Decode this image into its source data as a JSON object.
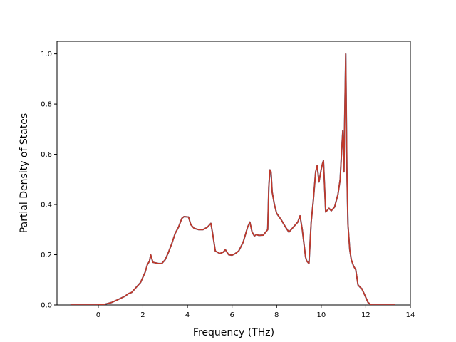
{
  "chart_data": {
    "type": "line",
    "title": "",
    "xlabel": "Frequency (THz)",
    "ylabel": "Partial Density of States",
    "xlim": [
      -1.85,
      14.0
    ],
    "ylim": [
      0.0,
      1.05
    ],
    "xticks": [
      0,
      2,
      4,
      6,
      8,
      10,
      12,
      14
    ],
    "yticks": [
      0.0,
      0.2,
      0.4,
      0.6,
      0.8,
      1.0
    ],
    "grid": false,
    "legend": "none",
    "line_colors": [
      "#1f77b4",
      "#c0392b"
    ],
    "series": [
      {
        "x": [
          -1.25,
          -0.5,
          0.0,
          0.3,
          0.6,
          0.9,
          1.2,
          1.35,
          1.5,
          1.7,
          1.9,
          2.0,
          2.1,
          2.2,
          2.3,
          2.35,
          2.45,
          2.7,
          2.85,
          3.0,
          3.15,
          3.3,
          3.45,
          3.6,
          3.75,
          3.85,
          4.05,
          4.15,
          4.3,
          4.5,
          4.7,
          4.9,
          5.05,
          5.12,
          5.25,
          5.45,
          5.6,
          5.7,
          5.85,
          6.0,
          6.15,
          6.3,
          6.5,
          6.7,
          6.8,
          6.9,
          7.0,
          7.1,
          7.2,
          7.4,
          7.6,
          7.65,
          7.7,
          7.75,
          7.8,
          7.9,
          8.0,
          8.2,
          8.4,
          8.55,
          8.65,
          8.8,
          8.95,
          9.05,
          9.15,
          9.3,
          9.35,
          9.45,
          9.55,
          9.65,
          9.75,
          9.82,
          9.9,
          10.0,
          10.05,
          10.1,
          10.2,
          10.35,
          10.45,
          10.6,
          10.75,
          10.85,
          10.92,
          10.97,
          11.02,
          11.05,
          11.1,
          11.15,
          11.2,
          11.28,
          11.35,
          11.45,
          11.55,
          11.65,
          11.75,
          11.82,
          11.95,
          12.1,
          12.25,
          12.6,
          13.3
        ],
        "y": [
          0.0,
          0.0,
          0.0,
          0.003,
          0.01,
          0.022,
          0.035,
          0.045,
          0.05,
          0.07,
          0.09,
          0.11,
          0.13,
          0.16,
          0.175,
          0.2,
          0.17,
          0.165,
          0.165,
          0.18,
          0.21,
          0.245,
          0.285,
          0.31,
          0.345,
          0.352,
          0.35,
          0.32,
          0.305,
          0.3,
          0.3,
          0.31,
          0.325,
          0.29,
          0.215,
          0.205,
          0.21,
          0.22,
          0.2,
          0.198,
          0.205,
          0.215,
          0.25,
          0.31,
          0.33,
          0.29,
          0.275,
          0.28,
          0.277,
          0.278,
          0.3,
          0.47,
          0.538,
          0.53,
          0.45,
          0.4,
          0.365,
          0.34,
          0.31,
          0.29,
          0.3,
          0.315,
          0.33,
          0.355,
          0.3,
          0.19,
          0.175,
          0.165,
          0.33,
          0.42,
          0.53,
          0.555,
          0.49,
          0.54,
          0.56,
          0.575,
          0.37,
          0.385,
          0.375,
          0.39,
          0.44,
          0.5,
          0.62,
          0.695,
          0.53,
          0.72,
          1.0,
          0.55,
          0.32,
          0.22,
          0.18,
          0.155,
          0.14,
          0.08,
          0.07,
          0.065,
          0.04,
          0.01,
          0.0,
          0.0,
          0.0
        ]
      },
      {
        "x": [
          -1.25,
          -0.5,
          0.0,
          0.3,
          0.6,
          0.9,
          1.2,
          1.35,
          1.5,
          1.7,
          1.9,
          2.0,
          2.1,
          2.2,
          2.3,
          2.35,
          2.45,
          2.7,
          2.85,
          3.0,
          3.15,
          3.3,
          3.45,
          3.6,
          3.75,
          3.85,
          4.05,
          4.15,
          4.3,
          4.5,
          4.7,
          4.9,
          5.05,
          5.12,
          5.25,
          5.45,
          5.6,
          5.7,
          5.85,
          6.0,
          6.15,
          6.3,
          6.5,
          6.7,
          6.8,
          6.9,
          7.0,
          7.1,
          7.2,
          7.4,
          7.6,
          7.65,
          7.7,
          7.75,
          7.8,
          7.9,
          8.0,
          8.2,
          8.4,
          8.55,
          8.65,
          8.8,
          8.95,
          9.05,
          9.15,
          9.3,
          9.35,
          9.45,
          9.55,
          9.65,
          9.75,
          9.82,
          9.9,
          10.0,
          10.05,
          10.1,
          10.2,
          10.35,
          10.45,
          10.6,
          10.75,
          10.85,
          10.92,
          10.97,
          11.02,
          11.05,
          11.1,
          11.15,
          11.2,
          11.28,
          11.35,
          11.45,
          11.55,
          11.65,
          11.75,
          11.82,
          11.95,
          12.1,
          12.25,
          12.6,
          13.3
        ],
        "y": [
          0.0,
          0.0,
          0.0,
          0.003,
          0.01,
          0.022,
          0.035,
          0.045,
          0.05,
          0.07,
          0.09,
          0.11,
          0.13,
          0.16,
          0.175,
          0.2,
          0.17,
          0.165,
          0.165,
          0.18,
          0.21,
          0.245,
          0.285,
          0.31,
          0.345,
          0.352,
          0.35,
          0.32,
          0.305,
          0.3,
          0.3,
          0.31,
          0.325,
          0.29,
          0.215,
          0.205,
          0.21,
          0.22,
          0.2,
          0.198,
          0.205,
          0.215,
          0.25,
          0.31,
          0.33,
          0.29,
          0.275,
          0.28,
          0.277,
          0.278,
          0.3,
          0.47,
          0.538,
          0.53,
          0.45,
          0.4,
          0.365,
          0.34,
          0.31,
          0.29,
          0.3,
          0.315,
          0.33,
          0.355,
          0.3,
          0.19,
          0.175,
          0.165,
          0.33,
          0.42,
          0.53,
          0.555,
          0.49,
          0.54,
          0.56,
          0.575,
          0.37,
          0.385,
          0.375,
          0.39,
          0.44,
          0.5,
          0.62,
          0.695,
          0.53,
          0.72,
          1.0,
          0.55,
          0.32,
          0.22,
          0.18,
          0.155,
          0.14,
          0.08,
          0.07,
          0.065,
          0.04,
          0.01,
          0.0,
          0.0,
          0.0
        ]
      }
    ]
  }
}
